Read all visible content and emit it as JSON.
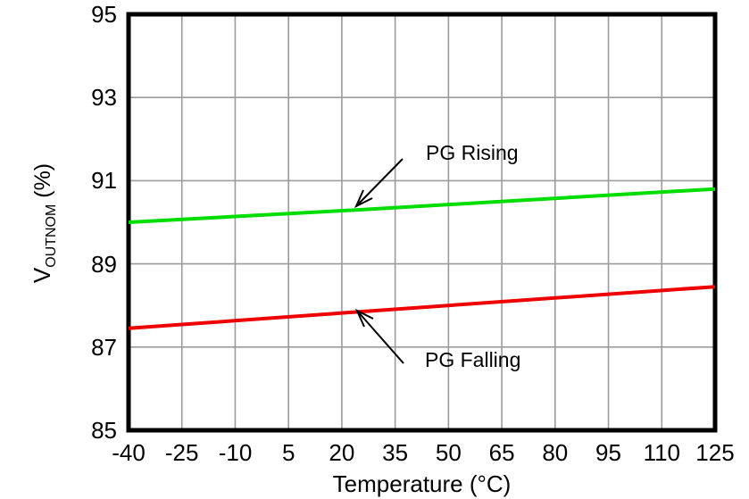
{
  "chart_data": {
    "type": "line",
    "title": "",
    "xlabel": "Temperature (°C)",
    "ylabel": "VOUTNOM (%)",
    "ylabel_main": "V",
    "ylabel_sub": "OUTNOM",
    "ylabel_suffix": " (%)",
    "xlim": [
      -40,
      125
    ],
    "ylim": [
      85,
      95
    ],
    "xticks": [
      -40,
      -25,
      -10,
      5,
      20,
      35,
      50,
      65,
      80,
      95,
      110,
      125
    ],
    "yticks": [
      85,
      87,
      89,
      91,
      93,
      95
    ],
    "grid": true,
    "grid_color": "#9b9b9b",
    "frame_color": "#000000",
    "background_color": "#ffffff",
    "legend_position": "inline-annotations",
    "series": [
      {
        "name": "PG Rising",
        "color": "#00dd00",
        "points": [
          [
            -40,
            90.0
          ],
          [
            25,
            90.3
          ],
          [
            125,
            90.8
          ]
        ]
      },
      {
        "name": "PG Falling",
        "color": "#ee0000",
        "points": [
          [
            -40,
            87.45
          ],
          [
            25,
            87.85
          ],
          [
            125,
            88.45
          ]
        ]
      }
    ],
    "annotations": [
      {
        "label": "PG Rising",
        "target_series": "PG Rising"
      },
      {
        "label": "PG Falling",
        "target_series": "PG Falling"
      }
    ]
  }
}
